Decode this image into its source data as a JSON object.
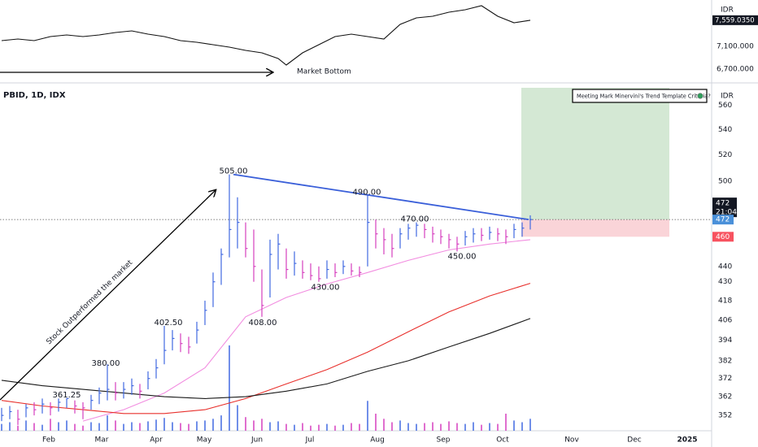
{
  "chart_data": [
    {
      "type": "ohlc",
      "title": "PBID, 1D, IDX",
      "currency": "IDR",
      "log_scale": true,
      "grid": false,
      "ylim": [
        344,
        575
      ],
      "yticks": [
        352,
        362,
        372,
        382,
        394,
        406,
        418,
        430,
        440,
        500,
        520,
        540,
        560
      ],
      "xlim": [
        -0.2,
        87.3
      ],
      "xticks": [
        {
          "value": 5.8,
          "label": "Feb"
        },
        {
          "value": 12.3,
          "label": "Mar"
        },
        {
          "value": 19,
          "label": "Apr"
        },
        {
          "value": 24.9,
          "label": "May"
        },
        {
          "value": 31.4,
          "label": "Jun"
        },
        {
          "value": 37.9,
          "label": "Jul"
        },
        {
          "value": 46.2,
          "label": "Aug"
        },
        {
          "value": 54.3,
          "label": "Sep"
        },
        {
          "value": 61.6,
          "label": "Oct"
        },
        {
          "value": 70.1,
          "label": "Nov"
        },
        {
          "value": 77.8,
          "label": "Dec"
        },
        {
          "value": 84.3,
          "label": "2025"
        }
      ],
      "x": [
        0,
        1,
        2,
        3,
        4,
        5,
        6,
        7,
        8,
        9,
        10,
        11,
        12,
        13,
        14,
        15,
        16,
        17,
        18,
        19,
        20,
        21,
        22,
        23,
        24,
        25,
        26,
        27,
        28,
        29,
        30,
        31,
        32,
        33,
        34,
        35,
        36,
        37,
        38,
        39,
        40,
        41,
        42,
        43,
        44,
        45,
        46,
        47,
        48,
        49,
        50,
        51,
        52,
        53,
        54,
        55,
        56,
        57,
        58,
        59,
        60,
        61,
        62,
        63,
        64,
        65
      ],
      "close": [
        352,
        354,
        350,
        356,
        355,
        358,
        356,
        359,
        361,
        357,
        356,
        360,
        364,
        366,
        364,
        366,
        368,
        365,
        372,
        378,
        388,
        395,
        392,
        390,
        400,
        412,
        430,
        448,
        465,
        470,
        452,
        440,
        415,
        448,
        455,
        438,
        442,
        436,
        434,
        432,
        438,
        436,
        440,
        437,
        436,
        470,
        462,
        458,
        452,
        462,
        466,
        468,
        465,
        462,
        460,
        458,
        455,
        460,
        462,
        461,
        463,
        462,
        460,
        465,
        466,
        472
      ],
      "high": [
        356,
        357,
        355,
        358,
        359,
        361,
        359,
        361,
        361.25,
        360,
        359,
        363,
        367,
        380,
        370,
        370,
        372,
        369,
        376,
        383,
        402.5,
        400,
        398,
        396,
        405,
        418,
        436,
        452,
        505,
        488,
        470,
        465,
        438,
        458,
        462,
        452,
        450,
        444,
        442,
        440,
        444,
        442,
        444,
        442,
        440,
        490,
        472,
        466,
        462,
        466,
        469,
        470,
        469,
        467,
        465,
        462,
        460,
        464,
        466,
        466,
        467,
        466,
        465,
        469,
        470,
        475
      ],
      "low": [
        349,
        350,
        347,
        351,
        352,
        353,
        352,
        354,
        356,
        353,
        350,
        355,
        358,
        360,
        360,
        361,
        363,
        361,
        366,
        372,
        380,
        388,
        387,
        386,
        392,
        403,
        414,
        428,
        446,
        452,
        446,
        430,
        408,
        420,
        438,
        432,
        434,
        432,
        431,
        430,
        432,
        433,
        435,
        434,
        433,
        440,
        452,
        448,
        446,
        452,
        458,
        460,
        459,
        456,
        455,
        452,
        450,
        454,
        456,
        457,
        458,
        457,
        455,
        459,
        460,
        465
      ],
      "up_color": "#4169e1",
      "down_color": "#d63fbf",
      "volume": [
        8,
        10,
        6,
        12,
        9,
        7,
        14,
        10,
        12,
        8,
        6,
        10,
        9,
        18,
        12,
        8,
        10,
        9,
        11,
        13,
        15,
        10,
        9,
        8,
        11,
        12,
        14,
        18,
        100,
        30,
        16,
        12,
        14,
        10,
        11,
        8,
        7,
        9,
        6,
        7,
        8,
        6,
        7,
        9,
        8,
        35,
        20,
        14,
        10,
        12,
        9,
        8,
        9,
        10,
        8,
        11,
        9,
        8,
        10,
        7,
        9,
        8,
        20,
        12,
        10,
        14
      ],
      "ma_series": [
        {
          "color": "#f28de0",
          "x": [
            10,
            15,
            20,
            25,
            30,
            35,
            40,
            45,
            50,
            55,
            60,
            65
          ],
          "values": [
            349,
            355,
            364,
            378,
            408,
            420,
            428.6,
            436,
            444,
            451,
            455,
            458
          ]
        },
        {
          "color": "#e8302c",
          "x": [
            0,
            5,
            10,
            15,
            20,
            25,
            30,
            35,
            40,
            45,
            50,
            55,
            60,
            65
          ],
          "values": [
            360,
            357,
            355,
            353,
            353,
            355,
            361,
            369,
            377,
            387,
            399,
            411,
            421,
            429
          ]
        },
        {
          "color": "#1a1a1a",
          "x": [
            0,
            5,
            10,
            15,
            20,
            25,
            30,
            35,
            40,
            45,
            50,
            55,
            60,
            65
          ],
          "values": [
            371,
            368,
            366,
            364,
            362,
            361,
            362,
            365,
            369,
            376,
            382,
            390,
            398,
            407
          ]
        }
      ],
      "trendline": {
        "color": "#3a5fd9",
        "from": [
          28.5,
          505
        ],
        "to": [
          64.8,
          472
        ]
      },
      "annotations": [
        {
          "label": "505.00",
          "value": 505,
          "x": 28.5
        },
        {
          "label": "490.00",
          "value": 490,
          "x": 44.9
        },
        {
          "label": "470.00",
          "value": 470,
          "x": 50.8
        },
        {
          "label": "450.00",
          "value": 450,
          "x": 56.6
        },
        {
          "label": "430.00",
          "value": 430,
          "x": 39.8
        },
        {
          "label": "408.00",
          "value": 408,
          "x": 32.1
        },
        {
          "label": "402.50",
          "value": 402.5,
          "x": 20.5
        },
        {
          "label": "380.00",
          "value": 380,
          "x": 12.8
        },
        {
          "label": "361.25",
          "value": 361.25,
          "x": 8
        }
      ],
      "trend_note": "Stock Outperformed the market",
      "criteria_box": "Meeting Mark Minervini's Trend Template Criteria?",
      "reward_zone": {
        "x": [
          63.9,
          82.1
        ],
        "y": [
          472,
          575
        ],
        "color": "#d4e8d4"
      },
      "risk_zone": {
        "x": [
          63.9,
          82.1
        ],
        "y": [
          460,
          472
        ],
        "color": "#fad4d8"
      },
      "last_price": 472,
      "countdown": "21:04",
      "stop_price": 460
    },
    {
      "type": "line",
      "currency": "IDR",
      "ylim": [
        6486,
        7914
      ],
      "yticks": [
        {
          "value": 6700,
          "label": "6,700.000"
        },
        {
          "value": 7100,
          "label": "7,100.000"
        }
      ],
      "x": [
        0,
        2,
        4,
        6,
        8,
        10,
        12,
        14,
        16,
        18,
        20,
        22,
        24,
        26,
        28,
        30,
        32,
        34,
        35,
        37,
        39,
        41,
        43,
        45,
        47,
        49,
        51,
        53,
        55,
        57,
        59,
        61,
        63,
        65
      ],
      "values": [
        7200,
        7229,
        7200,
        7271,
        7300,
        7271,
        7300,
        7343,
        7371,
        7314,
        7271,
        7200,
        7171,
        7129,
        7086,
        7029,
        6986,
        6886,
        6771,
        6986,
        7129,
        7271,
        7314,
        7271,
        7229,
        7486,
        7600,
        7629,
        7700,
        7743,
        7814,
        7629,
        7514,
        7559
      ],
      "color": "#111111",
      "last_value": {
        "value": 7559.035,
        "label": "7,559.0350"
      },
      "annotation": "Market Bottom"
    }
  ]
}
